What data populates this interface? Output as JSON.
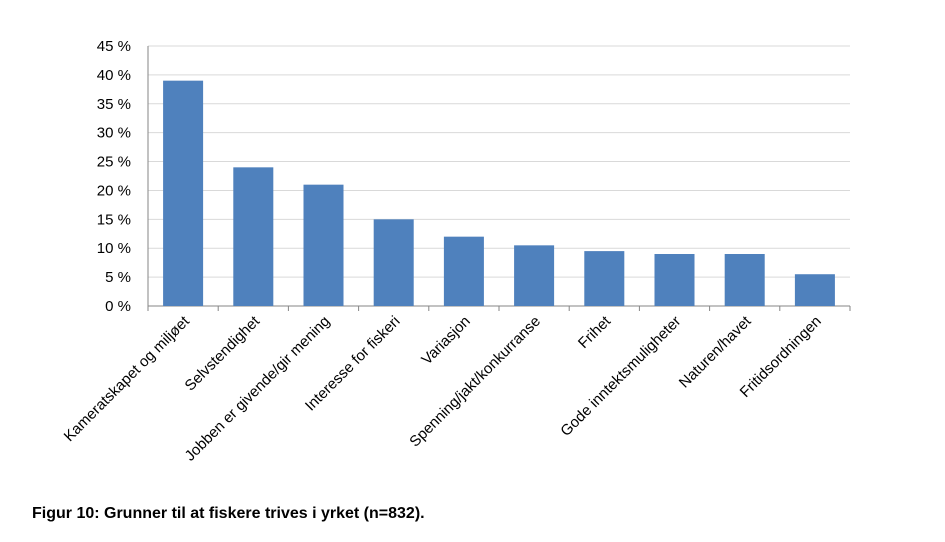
{
  "caption": "Figur 10: Grunner til at fiskere trives i yrket (n=832).",
  "chart_data": {
    "type": "bar",
    "title": "",
    "xlabel": "",
    "ylabel": "",
    "ylim": [
      0,
      45
    ],
    "ytick_step": 5,
    "ytick_suffix": " %",
    "grid": true,
    "legend": "none",
    "bar_color": "#4F81BD",
    "categories": [
      "Kameratskapet og miljøet",
      "Selvstendighet",
      "Jobben er givende/gir mening",
      "Interesse for fiskeri",
      "Variasjon",
      "Spenning/jakt/konkurranse",
      "Frihet",
      "Gode inntektsmuligheter",
      "Naturen/havet",
      "Fritidsordningen"
    ],
    "values": [
      39,
      24,
      21,
      15,
      12,
      10.5,
      9.5,
      9,
      9,
      5.5
    ]
  }
}
